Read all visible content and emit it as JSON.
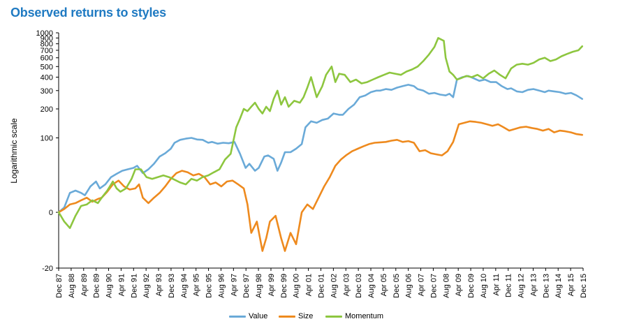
{
  "title": "Observed returns to styles",
  "chart_data": {
    "type": "line",
    "title": "Observed returns to styles",
    "ylabel": "Logarithmic scale",
    "xlabel": "",
    "scale": "log",
    "grid": false,
    "legend_position": "bottom",
    "y_ticks": [
      "1000",
      "900",
      "800",
      "700",
      "600",
      "500",
      "400",
      "300",
      "200",
      "100",
      "0",
      "-20"
    ],
    "x_ticks": [
      "Dec 87",
      "Aug 88",
      "Apr 89",
      "Dec 89",
      "Aug 90",
      "Apr 91",
      "Dec 91",
      "Aug 92",
      "Apr 93",
      "Dec 93",
      "Aug 94",
      "Apr 95",
      "Dec 95",
      "Aug 96",
      "Apr 97",
      "Dec 97",
      "Aug 98",
      "Apr 99",
      "Dec 99",
      "Aug 00",
      "Apr 01",
      "Dec 01",
      "Aug 02",
      "Apr 03",
      "Dec 03",
      "Aug 04",
      "Apr 05",
      "Dec 05",
      "Aug 06",
      "Apr 07",
      "Dec 07",
      "Aug 08",
      "Apr 09",
      "Dec 09",
      "Aug 10",
      "Apr 11",
      "Dec 11",
      "Aug 12",
      "Apr 13",
      "Dec 13",
      "Aug 14",
      "Apr 15",
      "Dec 15"
    ],
    "series": [
      {
        "name": "Value",
        "color": "#6aaad8",
        "x": [
          1987.9,
          1988.2,
          1988.5,
          1988.8,
          1989.1,
          1989.3,
          1989.6,
          1989.9,
          1990.1,
          1990.4,
          1990.7,
          1991.0,
          1991.3,
          1991.6,
          1991.9,
          1992.1,
          1992.4,
          1992.7,
          1993.0,
          1993.3,
          1993.6,
          1993.9,
          1994.1,
          1994.4,
          1994.7,
          1995.0,
          1995.3,
          1995.6,
          1995.9,
          1996.1,
          1996.4,
          1996.7,
          1997.0,
          1997.3,
          1997.6,
          1997.9,
          1998.1,
          1998.4,
          1998.6,
          1998.9,
          1999.1,
          1999.4,
          1999.6,
          1999.8,
          2000.0,
          2000.3,
          2000.6,
          2000.9,
          2001.1,
          2001.4,
          2001.7,
          2002.0,
          2002.3,
          2002.6,
          2002.9,
          2003.1,
          2003.4,
          2003.7,
          2004.0,
          2004.3,
          2004.6,
          2004.9,
          2005.1,
          2005.4,
          2005.7,
          2006.0,
          2006.3,
          2006.6,
          2006.9,
          2007.1,
          2007.4,
          2007.7,
          2008.0,
          2008.3,
          2008.6,
          2008.8,
          2009.0,
          2009.2,
          2009.5,
          2009.8,
          2010.1,
          2010.4,
          2010.7,
          2011.0,
          2011.3,
          2011.6,
          2011.9,
          2012.1,
          2012.4,
          2012.7,
          2013.0,
          2013.3,
          2013.6,
          2013.9,
          2014.1,
          2014.4,
          2014.7,
          2015.0,
          2015.3,
          2015.6,
          2015.9
        ],
        "values": [
          0,
          3,
          14,
          16,
          14,
          12,
          20,
          25,
          18,
          22,
          30,
          34,
          38,
          40,
          42,
          45,
          35,
          40,
          48,
          60,
          66,
          75,
          88,
          95,
          98,
          100,
          96,
          95,
          88,
          90,
          86,
          88,
          87,
          90,
          65,
          42,
          48,
          38,
          42,
          60,
          62,
          56,
          38,
          50,
          68,
          68,
          75,
          85,
          130,
          150,
          145,
          155,
          160,
          180,
          175,
          175,
          200,
          220,
          260,
          270,
          290,
          300,
          300,
          310,
          305,
          320,
          330,
          340,
          330,
          310,
          300,
          280,
          285,
          275,
          270,
          280,
          260,
          380,
          400,
          410,
          390,
          370,
          380,
          360,
          360,
          330,
          310,
          315,
          295,
          290,
          305,
          310,
          300,
          290,
          300,
          295,
          290,
          280,
          285,
          270,
          250
        ]
      },
      {
        "name": "Size",
        "color": "#ee8a1e",
        "x": [
          1987.9,
          1988.2,
          1988.5,
          1988.8,
          1989.1,
          1989.4,
          1989.7,
          1990.0,
          1990.2,
          1990.5,
          1990.8,
          1991.1,
          1991.4,
          1991.7,
          1992.0,
          1992.2,
          1992.4,
          1992.7,
          1993.0,
          1993.3,
          1993.6,
          1993.9,
          1994.2,
          1994.5,
          1994.8,
          1995.1,
          1995.4,
          1995.7,
          1996.0,
          1996.3,
          1996.6,
          1996.9,
          1997.2,
          1997.5,
          1997.8,
          1998.0,
          1998.2,
          1998.5,
          1998.8,
          1999.0,
          1999.2,
          1999.5,
          1999.8,
          2000.0,
          2000.3,
          2000.6,
          2000.9,
          2001.2,
          2001.5,
          2001.8,
          2002.1,
          2002.4,
          2002.7,
          2003.0,
          2003.3,
          2003.6,
          2003.9,
          2004.2,
          2004.5,
          2004.8,
          2005.1,
          2005.4,
          2005.7,
          2006.0,
          2006.3,
          2006.6,
          2006.9,
          2007.2,
          2007.5,
          2007.8,
          2008.1,
          2008.4,
          2008.7,
          2009.0,
          2009.3,
          2009.6,
          2009.9,
          2010.2,
          2010.5,
          2010.8,
          2011.1,
          2011.4,
          2011.7,
          2012.0,
          2012.3,
          2012.6,
          2012.9,
          2013.2,
          2013.5,
          2013.8,
          2014.1,
          2014.4,
          2014.7,
          2015.0,
          2015.3,
          2015.6,
          2015.9
        ],
        "values": [
          0,
          2,
          5,
          6,
          8,
          10,
          7,
          9,
          10,
          15,
          22,
          26,
          20,
          17,
          18,
          22,
          10,
          6,
          10,
          14,
          20,
          28,
          35,
          38,
          36,
          32,
          34,
          30,
          22,
          24,
          20,
          25,
          26,
          22,
          18,
          5,
          -10,
          -5,
          -16,
          -12,
          -5,
          -2,
          -12,
          -16,
          -10,
          -14,
          0,
          5,
          2,
          10,
          20,
          30,
          45,
          55,
          63,
          70,
          75,
          80,
          85,
          88,
          89,
          90,
          93,
          95,
          90,
          92,
          88,
          70,
          72,
          66,
          64,
          62,
          70,
          90,
          140,
          145,
          150,
          148,
          145,
          140,
          135,
          140,
          130,
          120,
          125,
          130,
          132,
          128,
          125,
          120,
          125,
          115,
          120,
          118,
          115,
          110,
          108
        ]
      },
      {
        "name": "Momentum",
        "color": "#8dc63f",
        "x": [
          1987.9,
          1988.2,
          1988.5,
          1988.8,
          1989.1,
          1989.4,
          1989.7,
          1990.0,
          1990.2,
          1990.5,
          1990.8,
          1991.0,
          1991.2,
          1991.5,
          1991.8,
          1992.0,
          1992.3,
          1992.6,
          1992.9,
          1993.2,
          1993.5,
          1993.8,
          1994.1,
          1994.4,
          1994.7,
          1995.0,
          1995.3,
          1995.6,
          1995.9,
          1996.2,
          1996.5,
          1996.8,
          1997.1,
          1997.4,
          1997.6,
          1997.8,
          1998.0,
          1998.2,
          1998.4,
          1998.6,
          1998.8,
          1999.0,
          1999.2,
          1999.4,
          1999.6,
          1999.8,
          2000.0,
          2000.2,
          2000.5,
          2000.8,
          2001.0,
          2001.2,
          2001.4,
          2001.7,
          2002.0,
          2002.2,
          2002.5,
          2002.7,
          2002.9,
          2003.2,
          2003.5,
          2003.8,
          2004.1,
          2004.4,
          2004.7,
          2005.0,
          2005.3,
          2005.6,
          2005.9,
          2006.2,
          2006.5,
          2006.8,
          2007.1,
          2007.4,
          2007.7,
          2008.0,
          2008.2,
          2008.5,
          2008.6,
          2008.8,
          2009.0,
          2009.2,
          2009.4,
          2009.7,
          2010.0,
          2010.3,
          2010.6,
          2010.9,
          2011.2,
          2011.5,
          2011.8,
          2012.1,
          2012.4,
          2012.7,
          2013.0,
          2013.3,
          2013.6,
          2013.9,
          2014.2,
          2014.5,
          2014.8,
          2015.1,
          2015.4,
          2015.7,
          2015.9
        ],
        "values": [
          0,
          -5,
          -8,
          -2,
          4,
          5,
          8,
          6,
          10,
          16,
          25,
          18,
          15,
          18,
          28,
          40,
          40,
          30,
          28,
          30,
          32,
          30,
          27,
          24,
          22,
          28,
          26,
          30,
          32,
          36,
          40,
          55,
          65,
          130,
          160,
          200,
          190,
          210,
          230,
          200,
          180,
          210,
          190,
          250,
          300,
          220,
          260,
          210,
          240,
          230,
          260,
          320,
          400,
          260,
          330,
          420,
          500,
          360,
          430,
          420,
          360,
          380,
          350,
          360,
          380,
          400,
          420,
          440,
          430,
          420,
          450,
          470,
          500,
          560,
          640,
          750,
          900,
          850,
          600,
          450,
          420,
          380,
          390,
          410,
          400,
          420,
          390,
          430,
          460,
          420,
          390,
          480,
          520,
          530,
          520,
          540,
          580,
          600,
          560,
          580,
          620,
          650,
          680,
          700,
          760
        ]
      }
    ]
  }
}
